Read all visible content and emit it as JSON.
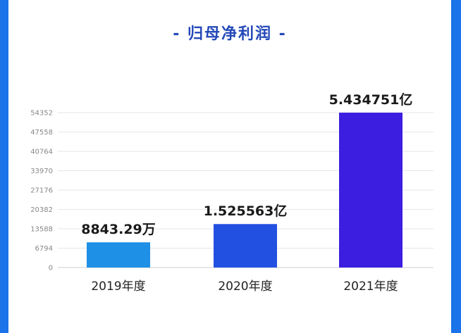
{
  "colors": {
    "frame": "#1a73e8",
    "title": "#2348b8",
    "bar_2019": "#1e90e6",
    "bar_2020": "#2250e0",
    "bar_2021": "#3b1ee0",
    "grid": "#e6e6ea",
    "tick": "#888888"
  },
  "title_text": "- 归母净利润 -",
  "chart_data": {
    "type": "bar",
    "title": "归母净利润",
    "categories": [
      "2019年度",
      "2020年度",
      "2021年度"
    ],
    "values": [
      8843.29,
      15255.63,
      54347.51
    ],
    "data_labels": [
      "8843.29万",
      "1.525563亿",
      "5.434751亿"
    ],
    "yticks": [
      0,
      6794,
      13588,
      20382,
      27176,
      33970,
      40764,
      47558,
      54352
    ],
    "ylim": [
      0,
      54352
    ],
    "grid": true,
    "legend": "none"
  }
}
